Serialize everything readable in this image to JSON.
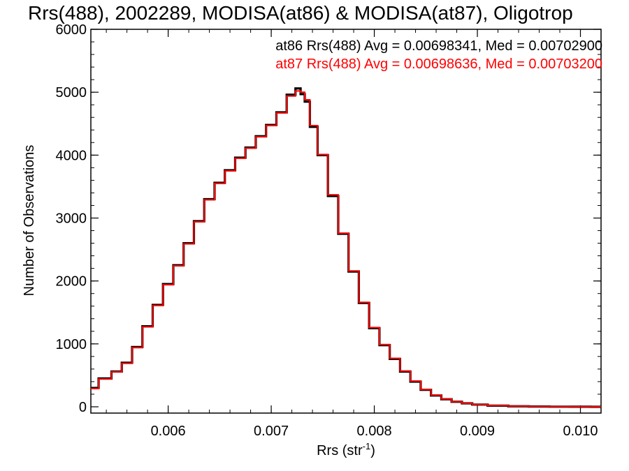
{
  "chart_data": {
    "type": "line",
    "title": "Rrs(488), 2002289, MODISA(at86) & MODISA(at87), Oligotrop",
    "xlabel": "Rrs (str",
    "xlabel_sup": "-1",
    "xlabel_suffix": ")",
    "ylabel": "Number of Observations",
    "xlim": [
      0.00525,
      0.0102
    ],
    "ylim": [
      -100,
      6000
    ],
    "x_ticks": [
      0.006,
      0.007,
      0.008,
      0.009,
      0.01
    ],
    "x_tick_labels": [
      "0.006",
      "0.007",
      "0.008",
      "0.009",
      "0.010"
    ],
    "y_ticks": [
      0,
      1000,
      2000,
      3000,
      4000,
      5000,
      6000
    ],
    "y_tick_labels": [
      "0",
      "1000",
      "2000",
      "3000",
      "4000",
      "5000",
      "6000"
    ],
    "grid": false,
    "legend_position": "top-right",
    "series": [
      {
        "name": "at86",
        "legend": "at86 Rrs(488) Avg = 0.00698341, Med = 0.00702900",
        "color": "#000000",
        "points": [
          [
            0.00525,
            300
          ],
          [
            0.0054,
            450
          ],
          [
            0.0055,
            560
          ],
          [
            0.0056,
            700
          ],
          [
            0.0057,
            950
          ],
          [
            0.0058,
            1280
          ],
          [
            0.0059,
            1620
          ],
          [
            0.006,
            1950
          ],
          [
            0.0061,
            2250
          ],
          [
            0.0062,
            2600
          ],
          [
            0.0063,
            2950
          ],
          [
            0.0064,
            3300
          ],
          [
            0.0065,
            3560
          ],
          [
            0.0066,
            3760
          ],
          [
            0.0067,
            3960
          ],
          [
            0.0068,
            4120
          ],
          [
            0.0069,
            4300
          ],
          [
            0.007,
            4480
          ],
          [
            0.0071,
            4680
          ],
          [
            0.0072,
            4960
          ],
          [
            0.00727,
            5060
          ],
          [
            0.0073,
            4970
          ],
          [
            0.00735,
            4850
          ],
          [
            0.0074,
            4450
          ],
          [
            0.0075,
            4000
          ],
          [
            0.0076,
            3350
          ],
          [
            0.0077,
            2750
          ],
          [
            0.0078,
            2150
          ],
          [
            0.0079,
            1650
          ],
          [
            0.008,
            1250
          ],
          [
            0.0081,
            980
          ],
          [
            0.0082,
            760
          ],
          [
            0.0083,
            560
          ],
          [
            0.0084,
            400
          ],
          [
            0.0085,
            270
          ],
          [
            0.0086,
            180
          ],
          [
            0.0087,
            120
          ],
          [
            0.0088,
            80
          ],
          [
            0.0089,
            55
          ],
          [
            0.009,
            35
          ],
          [
            0.0092,
            18
          ],
          [
            0.0094,
            8
          ],
          [
            0.0096,
            4
          ],
          [
            0.0098,
            2
          ],
          [
            0.01,
            1
          ],
          [
            0.0102,
            0
          ]
        ]
      },
      {
        "name": "at87",
        "legend": "at87 Rrs(488) Avg = 0.00698636, Med = 0.00703200",
        "color": "#ff0000",
        "points": [
          [
            0.00525,
            290
          ],
          [
            0.0054,
            440
          ],
          [
            0.0055,
            555
          ],
          [
            0.0056,
            690
          ],
          [
            0.0057,
            940
          ],
          [
            0.0058,
            1270
          ],
          [
            0.0059,
            1610
          ],
          [
            0.006,
            1940
          ],
          [
            0.0061,
            2240
          ],
          [
            0.0062,
            2590
          ],
          [
            0.0063,
            2940
          ],
          [
            0.0064,
            3290
          ],
          [
            0.0065,
            3550
          ],
          [
            0.0066,
            3750
          ],
          [
            0.0067,
            3950
          ],
          [
            0.0068,
            4110
          ],
          [
            0.0069,
            4290
          ],
          [
            0.007,
            4470
          ],
          [
            0.0071,
            4670
          ],
          [
            0.0072,
            4940
          ],
          [
            0.00727,
            5020
          ],
          [
            0.0073,
            5000
          ],
          [
            0.00735,
            4880
          ],
          [
            0.0074,
            4470
          ],
          [
            0.0075,
            4010
          ],
          [
            0.0076,
            3370
          ],
          [
            0.0077,
            2760
          ],
          [
            0.0078,
            2160
          ],
          [
            0.0079,
            1660
          ],
          [
            0.008,
            1260
          ],
          [
            0.0081,
            990
          ],
          [
            0.0082,
            770
          ],
          [
            0.0083,
            570
          ],
          [
            0.0084,
            410
          ],
          [
            0.0085,
            275
          ],
          [
            0.0086,
            185
          ],
          [
            0.0087,
            125
          ],
          [
            0.0088,
            82
          ],
          [
            0.0089,
            56
          ],
          [
            0.009,
            36
          ],
          [
            0.0092,
            19
          ],
          [
            0.0094,
            9
          ],
          [
            0.0096,
            4
          ],
          [
            0.0098,
            2
          ],
          [
            0.01,
            1
          ],
          [
            0.0102,
            0
          ]
        ]
      }
    ]
  }
}
